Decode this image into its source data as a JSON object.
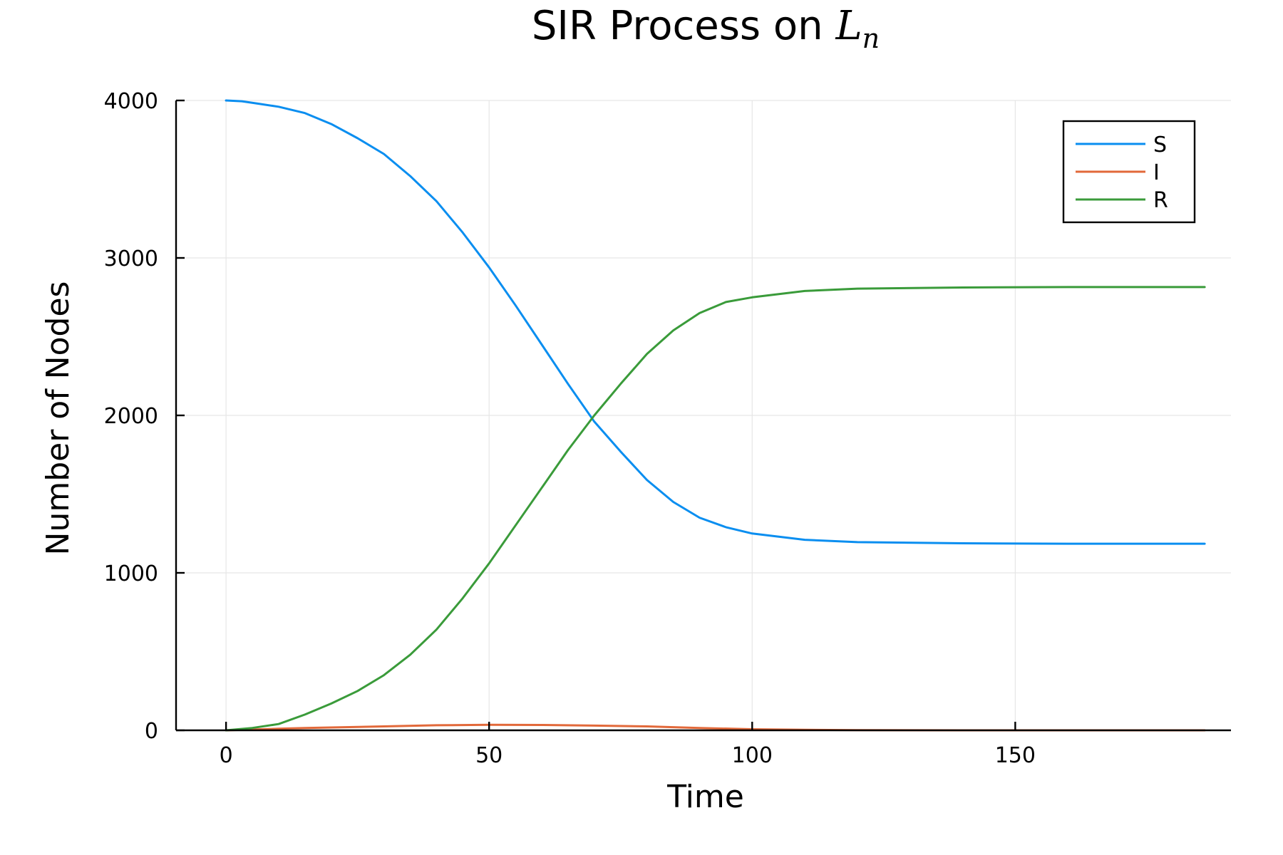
{
  "chart_data": {
    "type": "line",
    "title": {
      "prefix": "SIR Process on ",
      "math_base": "L",
      "math_sub": "n"
    },
    "xlabel": "Time",
    "ylabel": "Number of Nodes",
    "xlim": [
      -9.5,
      191
    ],
    "ylim": [
      0,
      4000
    ],
    "xticks": [
      0,
      50,
      100,
      150
    ],
    "yticks": [
      0,
      1000,
      2000,
      3000,
      4000
    ],
    "grid": true,
    "legend": {
      "position": "top-right"
    },
    "series": [
      {
        "name": "S",
        "color": "#0a8ef0",
        "points": [
          [
            0,
            4000
          ],
          [
            3,
            3995
          ],
          [
            6,
            3980
          ],
          [
            10,
            3960
          ],
          [
            15,
            3920
          ],
          [
            20,
            3850
          ],
          [
            25,
            3760
          ],
          [
            30,
            3660
          ],
          [
            35,
            3520
          ],
          [
            40,
            3360
          ],
          [
            45,
            3160
          ],
          [
            50,
            2940
          ],
          [
            55,
            2700
          ],
          [
            60,
            2450
          ],
          [
            65,
            2200
          ],
          [
            70,
            1960
          ],
          [
            75,
            1770
          ],
          [
            80,
            1590
          ],
          [
            85,
            1450
          ],
          [
            90,
            1350
          ],
          [
            95,
            1290
          ],
          [
            100,
            1250
          ],
          [
            110,
            1210
          ],
          [
            120,
            1195
          ],
          [
            140,
            1188
          ],
          [
            160,
            1185
          ],
          [
            186,
            1185
          ]
        ]
      },
      {
        "name": "I",
        "color": "#e2693a",
        "points": [
          [
            0,
            0
          ],
          [
            5,
            5
          ],
          [
            10,
            10
          ],
          [
            15,
            15
          ],
          [
            20,
            18
          ],
          [
            30,
            25
          ],
          [
            40,
            32
          ],
          [
            50,
            35
          ],
          [
            60,
            34
          ],
          [
            70,
            30
          ],
          [
            80,
            25
          ],
          [
            90,
            15
          ],
          [
            100,
            7
          ],
          [
            110,
            3
          ],
          [
            120,
            1
          ],
          [
            140,
            0
          ],
          [
            186,
            0
          ]
        ]
      },
      {
        "name": "R",
        "color": "#3a9b3a",
        "points": [
          [
            0,
            0
          ],
          [
            5,
            15
          ],
          [
            10,
            40
          ],
          [
            15,
            100
          ],
          [
            20,
            170
          ],
          [
            25,
            250
          ],
          [
            30,
            350
          ],
          [
            35,
            480
          ],
          [
            40,
            640
          ],
          [
            45,
            840
          ],
          [
            50,
            1060
          ],
          [
            55,
            1300
          ],
          [
            60,
            1540
          ],
          [
            65,
            1780
          ],
          [
            70,
            2000
          ],
          [
            75,
            2200
          ],
          [
            80,
            2390
          ],
          [
            85,
            2540
          ],
          [
            90,
            2650
          ],
          [
            95,
            2720
          ],
          [
            100,
            2750
          ],
          [
            110,
            2790
          ],
          [
            120,
            2805
          ],
          [
            140,
            2812
          ],
          [
            160,
            2815
          ],
          [
            186,
            2815
          ]
        ]
      }
    ]
  }
}
